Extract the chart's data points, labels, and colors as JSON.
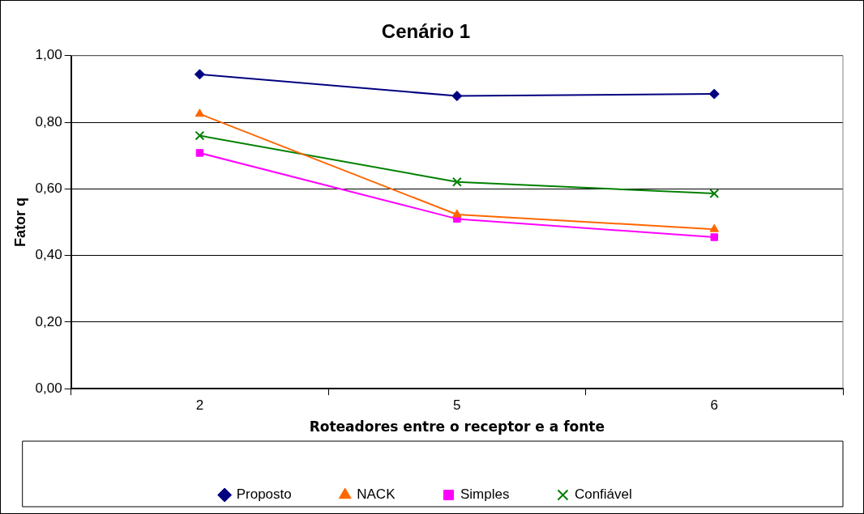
{
  "chart_data": {
    "type": "line",
    "title": "Cenário 1",
    "xlabel": "Roteadores entre o receptor e a fonte",
    "ylabel": "Fator q",
    "categories": [
      "2",
      "5",
      "6"
    ],
    "series": [
      {
        "name": "Proposto",
        "color": "#000080",
        "marker": "diamond",
        "values": [
          0.944,
          0.879,
          0.885
        ]
      },
      {
        "name": "NACK",
        "color": "#ff6600",
        "marker": "triangle",
        "values": [
          0.825,
          0.523,
          0.479
        ]
      },
      {
        "name": "Simples",
        "color": "#ff00ff",
        "marker": "square",
        "values": [
          0.708,
          0.51,
          0.455
        ]
      },
      {
        "name": "Confiável",
        "color": "#008000",
        "marker": "cross",
        "values": [
          0.76,
          0.621,
          0.586
        ]
      }
    ],
    "ylim": [
      0,
      1
    ],
    "yticks": [
      {
        "value": 0,
        "label": "0,00"
      },
      {
        "value": 0.2,
        "label": "0,20"
      },
      {
        "value": 0.4,
        "label": "0,40"
      },
      {
        "value": 0.6,
        "label": "0,60"
      },
      {
        "value": 0.8,
        "label": "0,80"
      },
      {
        "value": 1,
        "label": "1,00"
      }
    ],
    "grid": "y",
    "legend": "bottom",
    "line_style": "solid"
  }
}
